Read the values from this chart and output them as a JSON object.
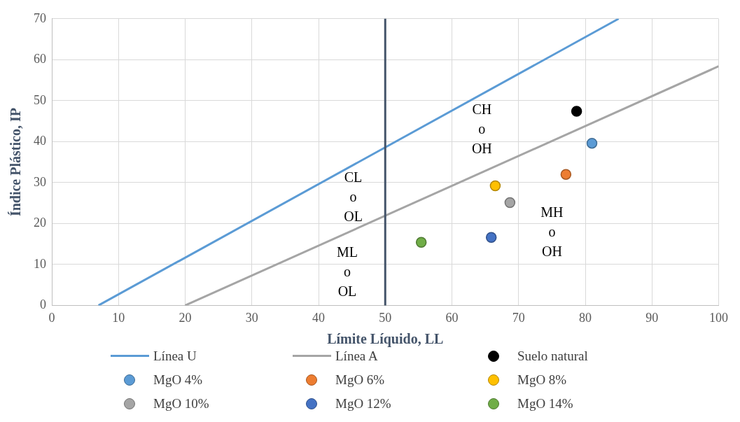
{
  "chart_data": {
    "type": "scatter",
    "xlabel": "Límite Líquido, LL",
    "ylabel": "Índice Plástico, IP",
    "xlim": [
      0,
      100
    ],
    "xticks": [
      0,
      10,
      20,
      30,
      40,
      50,
      60,
      70,
      80,
      90,
      100
    ],
    "ylim": [
      0,
      70
    ],
    "yticks": [
      0,
      10,
      20,
      30,
      40,
      50,
      60,
      70
    ],
    "grid": true,
    "legend": "bottom",
    "marker": "circle",
    "ref_lines": [
      {
        "axis": "x",
        "value": 50,
        "color": "#44546a"
      }
    ],
    "annotations": [
      "CH\no\nOH",
      "CL\no\nOL",
      "ML\no\nOL",
      "MH\no\nOH"
    ],
    "series": [
      {
        "name": "Línea U",
        "type": "line",
        "marker": "none",
        "color": "#5b9bd5",
        "x": [
          7,
          85
        ],
        "values": [
          0,
          70
        ]
      },
      {
        "name": "Línea A",
        "type": "line",
        "marker": "none",
        "color": "#a5a5a5",
        "x": [
          20,
          100
        ],
        "values": [
          0,
          58.4
        ]
      },
      {
        "name": "Suelo natural",
        "color": "#000000",
        "x": [
          78.7
        ],
        "values": [
          47.4
        ]
      },
      {
        "name": "MgO 4%",
        "color": "#5b9bd5",
        "x": [
          81
        ],
        "values": [
          39.6
        ]
      },
      {
        "name": "MgO 6%",
        "color": "#ed7d31",
        "x": [
          77.1
        ],
        "values": [
          32
        ]
      },
      {
        "name": "MgO 8%",
        "color": "#ffc000",
        "x": [
          66.5
        ],
        "values": [
          29.2
        ]
      },
      {
        "name": "MgO 10%",
        "color": "#a5a5a5",
        "x": [
          68.7
        ],
        "values": [
          25.1
        ]
      },
      {
        "name": "MgO 12%",
        "color": "#4472c4",
        "x": [
          65.9
        ],
        "values": [
          16.6
        ]
      },
      {
        "name": "MgO 14%",
        "color": "#70ad47",
        "x": [
          55.4
        ],
        "values": [
          15.4
        ]
      }
    ]
  }
}
